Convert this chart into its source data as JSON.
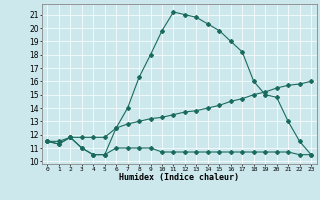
{
  "xlabel": "Humidex (Indice chaleur)",
  "bg_color": "#cce8ed",
  "line_color": "#1a6b5e",
  "grid_color": "#ffffff",
  "xlim": [
    -0.5,
    23.5
  ],
  "ylim": [
    9.8,
    21.8
  ],
  "yticks": [
    10,
    11,
    12,
    13,
    14,
    15,
    16,
    17,
    18,
    19,
    20,
    21
  ],
  "xticks": [
    0,
    1,
    2,
    3,
    4,
    5,
    6,
    7,
    8,
    9,
    10,
    11,
    12,
    13,
    14,
    15,
    16,
    17,
    18,
    19,
    20,
    21,
    22,
    23
  ],
  "line1_x": [
    0,
    1,
    2,
    3,
    4,
    5,
    6,
    7,
    8,
    9,
    10,
    11,
    12,
    13,
    14,
    15,
    16,
    17,
    18,
    19,
    20,
    21,
    22,
    23
  ],
  "line1_y": [
    11.5,
    11.3,
    11.8,
    11.0,
    10.5,
    10.5,
    12.5,
    14.0,
    16.3,
    18.0,
    19.8,
    21.2,
    21.0,
    20.8,
    20.3,
    19.8,
    19.0,
    18.2,
    16.0,
    15.0,
    14.8,
    13.0,
    11.5,
    10.5
  ],
  "line2_x": [
    0,
    1,
    2,
    3,
    4,
    5,
    6,
    7,
    8,
    9,
    10,
    11,
    12,
    13,
    14,
    15,
    16,
    17,
    18,
    19,
    20,
    21,
    22,
    23
  ],
  "line2_y": [
    11.5,
    11.5,
    11.8,
    11.8,
    11.8,
    11.8,
    12.5,
    12.8,
    13.0,
    13.2,
    13.3,
    13.5,
    13.7,
    13.8,
    14.0,
    14.2,
    14.5,
    14.7,
    15.0,
    15.2,
    15.5,
    15.7,
    15.8,
    16.0
  ],
  "line3_x": [
    0,
    1,
    2,
    3,
    4,
    5,
    6,
    7,
    8,
    9,
    10,
    11,
    12,
    13,
    14,
    15,
    16,
    17,
    18,
    19,
    20,
    21,
    22,
    23
  ],
  "line3_y": [
    11.5,
    11.3,
    11.8,
    11.0,
    10.5,
    10.5,
    11.0,
    11.0,
    11.0,
    11.0,
    10.7,
    10.7,
    10.7,
    10.7,
    10.7,
    10.7,
    10.7,
    10.7,
    10.7,
    10.7,
    10.7,
    10.7,
    10.5,
    10.5
  ]
}
